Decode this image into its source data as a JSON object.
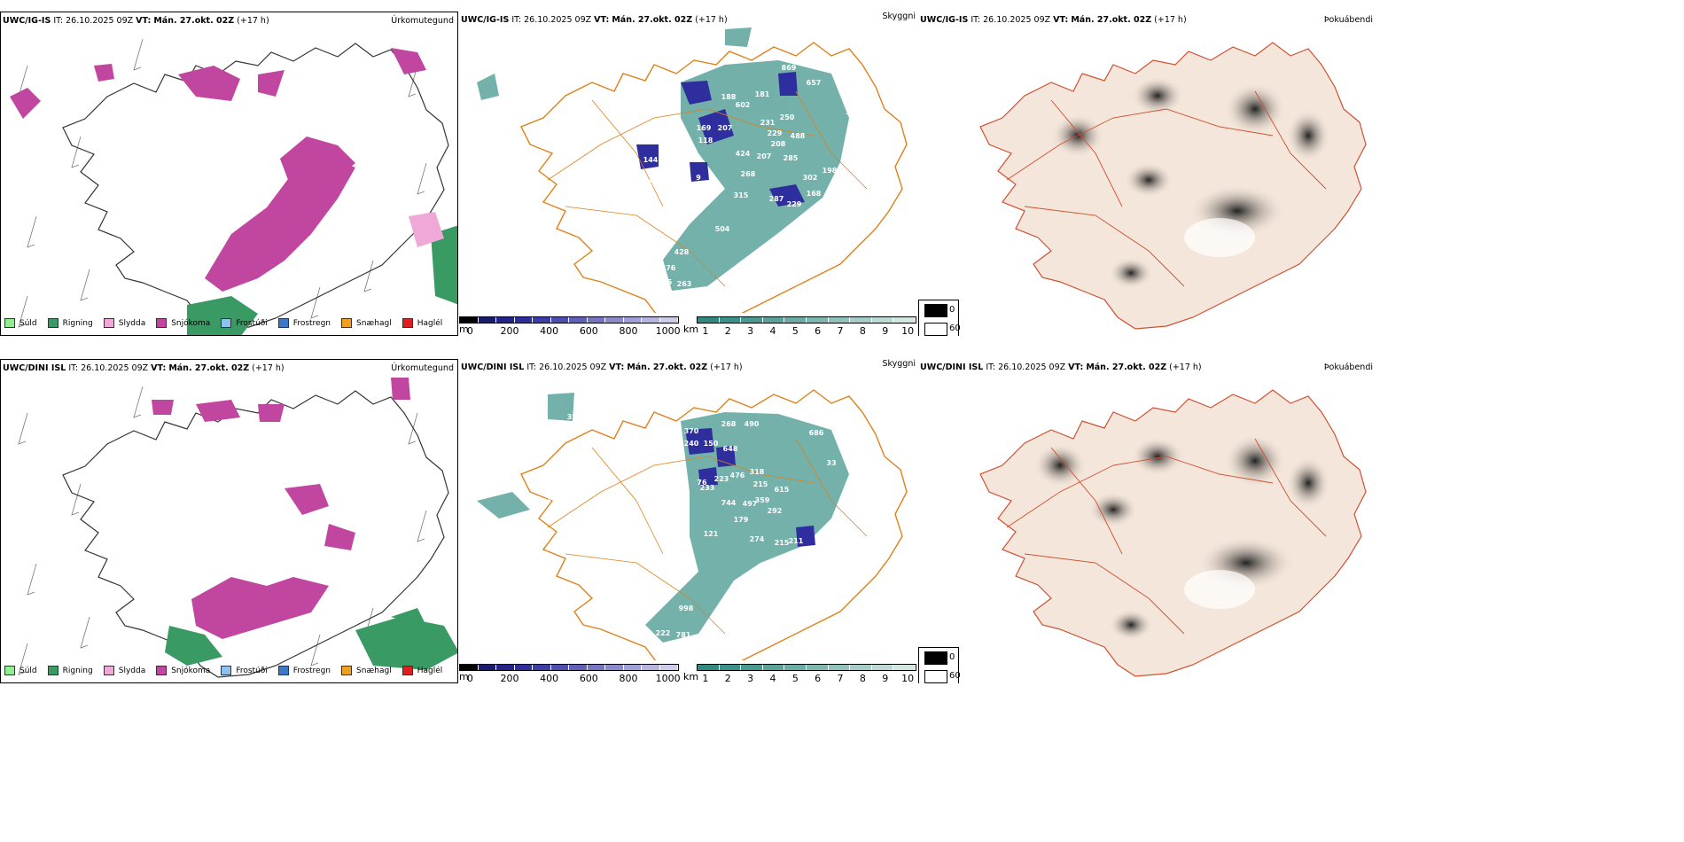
{
  "rows": [
    {
      "precip": {
        "model": "UWC/IG-IS",
        "it_label": "IT:",
        "it": "26.10.2025 09Z",
        "vt_label": "VT:",
        "vt": "Mán. 27.okt. 02Z",
        "lead": "(+17 h)",
        "name": "Úrkomutegund"
      },
      "visibility": {
        "model": "UWC/IG-IS",
        "it_label": "IT:",
        "it": "26.10.2025 09Z",
        "vt_label": "VT:",
        "vt": "Mán. 27.okt. 02Z",
        "lead": "(+17 h)",
        "name": "Skyggni"
      },
      "cloud": {
        "model": "UWC/IG-IS",
        "it_label": "IT:",
        "it": "26.10.2025 09Z",
        "vt_label": "VT:",
        "vt": "Mán. 27.okt. 02Z",
        "lead": "(+17 h)",
        "name": "Þokuábendi"
      },
      "vis_labels": [
        "869",
        "657",
        "580",
        "188",
        "181",
        "602",
        "250",
        "231",
        "229",
        "208",
        "207",
        "488",
        "285",
        "424",
        "207",
        "144",
        "268",
        "302",
        "198",
        "168",
        "229",
        "287",
        "315",
        "504",
        "428",
        "276",
        "255",
        "263",
        "120",
        "118",
        "169",
        "37",
        "97",
        "131",
        "9"
      ]
    },
    {
      "precip": {
        "model": "UWC/DINI ISL",
        "it_label": "IT:",
        "it": "26.10.2025 09Z",
        "vt_label": "VT:",
        "vt": "Mán. 27.okt. 02Z",
        "lead": "(+17 h)",
        "name": "Úrkomutegund"
      },
      "visibility": {
        "model": "UWC/DINI ISL",
        "it_label": "IT:",
        "it": "26.10.2025 09Z",
        "vt_label": "VT:",
        "vt": "Mán. 27.okt. 02Z",
        "lead": "(+17 h)",
        "name": "Skyggni"
      },
      "cloud": {
        "model": "UWC/DINI ISL",
        "it_label": "IT:",
        "it": "26.10.2025 09Z",
        "vt_label": "VT:",
        "vt": "Mán. 27.okt. 02Z",
        "lead": "(+17 h)",
        "name": "Þokuábendi"
      },
      "vis_labels": [
        "490",
        "686",
        "268",
        "370",
        "150",
        "240",
        "648",
        "318",
        "476",
        "215",
        "223",
        "233",
        "615",
        "359",
        "744",
        "497",
        "292",
        "179",
        "274",
        "215",
        "211",
        "198",
        "998",
        "222",
        "781",
        "121",
        "321",
        "16",
        "76",
        "33"
      ]
    }
  ],
  "precip_legend": [
    {
      "label": "Súld",
      "color": "#90ee90"
    },
    {
      "label": "Rigning",
      "color": "#3a9a64"
    },
    {
      "label": "Slydda",
      "color": "#f0a8d8"
    },
    {
      "label": "Snjókoma",
      "color": "#c046a0"
    },
    {
      "label": "Frostúði",
      "color": "#8ec0f0"
    },
    {
      "label": "Frostregn",
      "color": "#3c78c8"
    },
    {
      "label": "Snæhagl",
      "color": "#f0a020"
    },
    {
      "label": "Haglél",
      "color": "#e02020"
    }
  ],
  "ceiling_bar": {
    "unit": "m",
    "ticks": [
      "0",
      "200",
      "400",
      "600",
      "800",
      "1000"
    ],
    "colors": [
      "#000000",
      "#1a1a6e",
      "#23238a",
      "#2e2e9e",
      "#3d3da8",
      "#4e4eb0",
      "#6060b8",
      "#7575c2",
      "#8b8bcc",
      "#a0a0d6",
      "#b5b5e0",
      "#cbcbea"
    ]
  },
  "vis_bar": {
    "unit": "km",
    "ticks": [
      "1",
      "2",
      "3",
      "4",
      "5",
      "6",
      "7",
      "8",
      "9",
      "10"
    ],
    "colors": [
      "#2f8a80",
      "#3c918a",
      "#4a9a92",
      "#5aa39b",
      "#6badA5",
      "#7db7af",
      "#91c2bb",
      "#a6cdc7",
      "#bcd9d4",
      "#d2e6e2"
    ]
  },
  "cloud_legend": [
    {
      "value": "0",
      "color": "#000000"
    },
    {
      "value": "60",
      "color": "#ffffff"
    }
  ]
}
